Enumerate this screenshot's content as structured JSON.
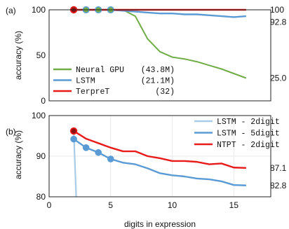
{
  "chart_data": [
    {
      "panel_label": "(a)",
      "type": "line",
      "xlim": [
        0,
        18
      ],
      "ylim": [
        0,
        100
      ],
      "yticks": [
        0,
        50,
        100
      ],
      "ylabel": "accuracy (%)",
      "grid": false,
      "legend": "bottom-left",
      "series": [
        {
          "legend_name": "Neural GPU",
          "legend_param": "(43.8M)",
          "color": "#70ad47",
          "x": [
            2,
            3,
            4,
            5,
            6,
            7,
            8,
            9,
            10,
            11,
            12,
            13,
            14,
            15,
            16
          ],
          "y": [
            100,
            100,
            100,
            100,
            100,
            93,
            68,
            54,
            48,
            46,
            43,
            39,
            35,
            30,
            25
          ]
        },
        {
          "legend_name": "LSTM",
          "legend_param": "(21.1M)",
          "color": "#5b9bd5",
          "x": [
            2,
            3,
            4,
            5,
            6,
            7,
            8,
            9,
            10,
            11,
            12,
            13,
            14,
            15,
            16
          ],
          "y": [
            100,
            100,
            100,
            100,
            99,
            98,
            97,
            96,
            96,
            95,
            95,
            94,
            93,
            92,
            93
          ],
          "markers": [
            2,
            3,
            4,
            5
          ]
        },
        {
          "legend_name": "TerpreT",
          "legend_param": "(32)",
          "color": "#e81a1a",
          "x": [
            2,
            3,
            4,
            5,
            6,
            7,
            8,
            9,
            10,
            11,
            12,
            13,
            14,
            15,
            16
          ],
          "y": [
            100,
            100,
            100,
            100,
            100,
            100,
            100,
            100,
            100,
            100,
            100,
            100,
            100,
            100,
            100
          ],
          "markers": [
            2
          ]
        }
      ],
      "end_labels": [
        {
          "text": "100",
          "y": 100
        },
        {
          "text": "92.8",
          "y": 92.8
        },
        {
          "text": "25.0",
          "y": 25.0
        }
      ]
    },
    {
      "panel_label": "(b)",
      "type": "line",
      "xlim": [
        0,
        18
      ],
      "ylim": [
        80,
        100
      ],
      "xticks": [
        0,
        5,
        10,
        15
      ],
      "yticks": [
        80,
        90,
        100
      ],
      "xlabel": "digits in expression",
      "ylabel": "accuracy (%)",
      "grid": true,
      "legend": "top-right",
      "series": [
        {
          "name": "LSTM - 2digit",
          "color": "#a9cce8",
          "x": [
            2,
            2.2
          ],
          "y": [
            96,
            80
          ]
        },
        {
          "name": "LSTM - 5digit",
          "color": "#5b9bd5",
          "x": [
            2,
            3,
            4,
            5,
            6,
            7,
            8,
            9,
            10,
            11,
            12,
            13,
            14,
            15,
            16
          ],
          "y": [
            94.2,
            92.1,
            90.9,
            89.3,
            88.4,
            88.0,
            87.0,
            85.8,
            85.3,
            85.0,
            84.5,
            84.3,
            83.8,
            82.9,
            82.8
          ],
          "markers": [
            2,
            3,
            4,
            5
          ]
        },
        {
          "name": "NTPT - 2digit",
          "color": "#e81a1a",
          "x": [
            2,
            3,
            4,
            5,
            6,
            7,
            8,
            9,
            10,
            11,
            12,
            13,
            14,
            15,
            16
          ],
          "y": [
            96.2,
            94.3,
            93.2,
            92.1,
            91.2,
            91.2,
            90.0,
            89.5,
            88.8,
            88.8,
            88.6,
            88.0,
            88.2,
            87.2,
            87.1
          ],
          "markers": [
            2
          ]
        }
      ],
      "end_labels": [
        {
          "text": "87.1",
          "y": 87.1
        },
        {
          "text": "82.8",
          "y": 82.8
        }
      ]
    }
  ]
}
